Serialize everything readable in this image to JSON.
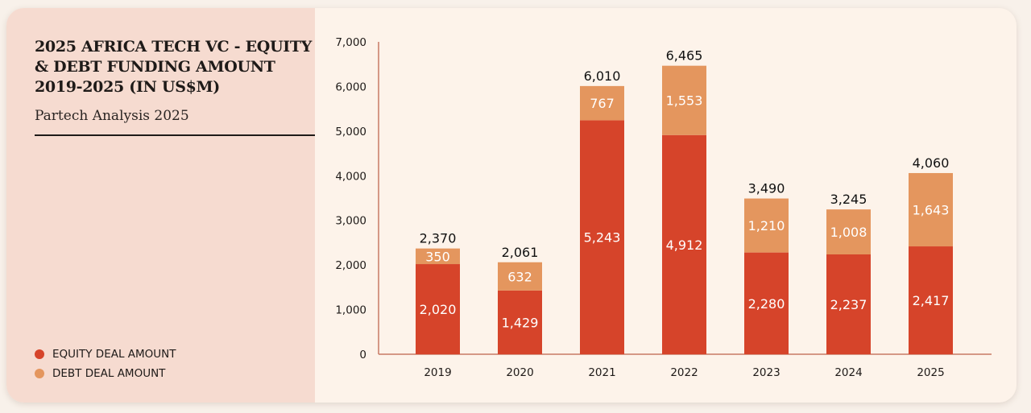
{
  "colors": {
    "equity": "#d6442a",
    "debt": "#e4965e",
    "axis": "#c87a64",
    "panel": "#f6dbd0",
    "card": "#fdf3ea"
  },
  "legend": [
    {
      "label": "EQUITY DEAL AMOUNT",
      "color": "#d6442a"
    },
    {
      "label": "DEBT DEAL AMOUNT",
      "color": "#e4965e"
    }
  ],
  "chart_data": {
    "type": "bar",
    "stacked": true,
    "title": "2025 AFRICA TECH VC - EQUITY & DEBT FUNDING AMOUNT 2019-2025 (IN US$M)",
    "subtitle": "Partech Analysis 2025",
    "xlabel": "",
    "ylabel": "",
    "categories": [
      "2019",
      "2020",
      "2021",
      "2022",
      "2023",
      "2024",
      "2025"
    ],
    "series": [
      {
        "name": "EQUITY DEAL AMOUNT",
        "values": [
          2020,
          1429,
          5243,
          4912,
          2280,
          2237,
          2417
        ],
        "labels": [
          "2,020",
          "1,429",
          "5,243",
          "4,912",
          "2,280",
          "2,237",
          "2,417"
        ]
      },
      {
        "name": "DEBT DEAL AMOUNT",
        "values": [
          350,
          632,
          767,
          1553,
          1210,
          1008,
          1643
        ],
        "labels": [
          "350",
          "632",
          "767",
          "1,553",
          "1,210",
          "1,008",
          "1,643"
        ]
      }
    ],
    "totals": [
      2370,
      2061,
      6010,
      6465,
      3490,
      3245,
      4060
    ],
    "total_labels": [
      "2,370",
      "2,061",
      "6,010",
      "6,465",
      "3,490",
      "3,245",
      "4,060"
    ],
    "ylim": [
      0,
      7000
    ],
    "yticks": [
      0,
      1000,
      2000,
      3000,
      4000,
      5000,
      6000,
      7000
    ],
    "ytick_labels": [
      "0",
      "1,000",
      "2,000",
      "3,000",
      "4,000",
      "5,000",
      "6,000",
      "7,000"
    ],
    "grid": false,
    "legend_position": "bottom-left"
  }
}
